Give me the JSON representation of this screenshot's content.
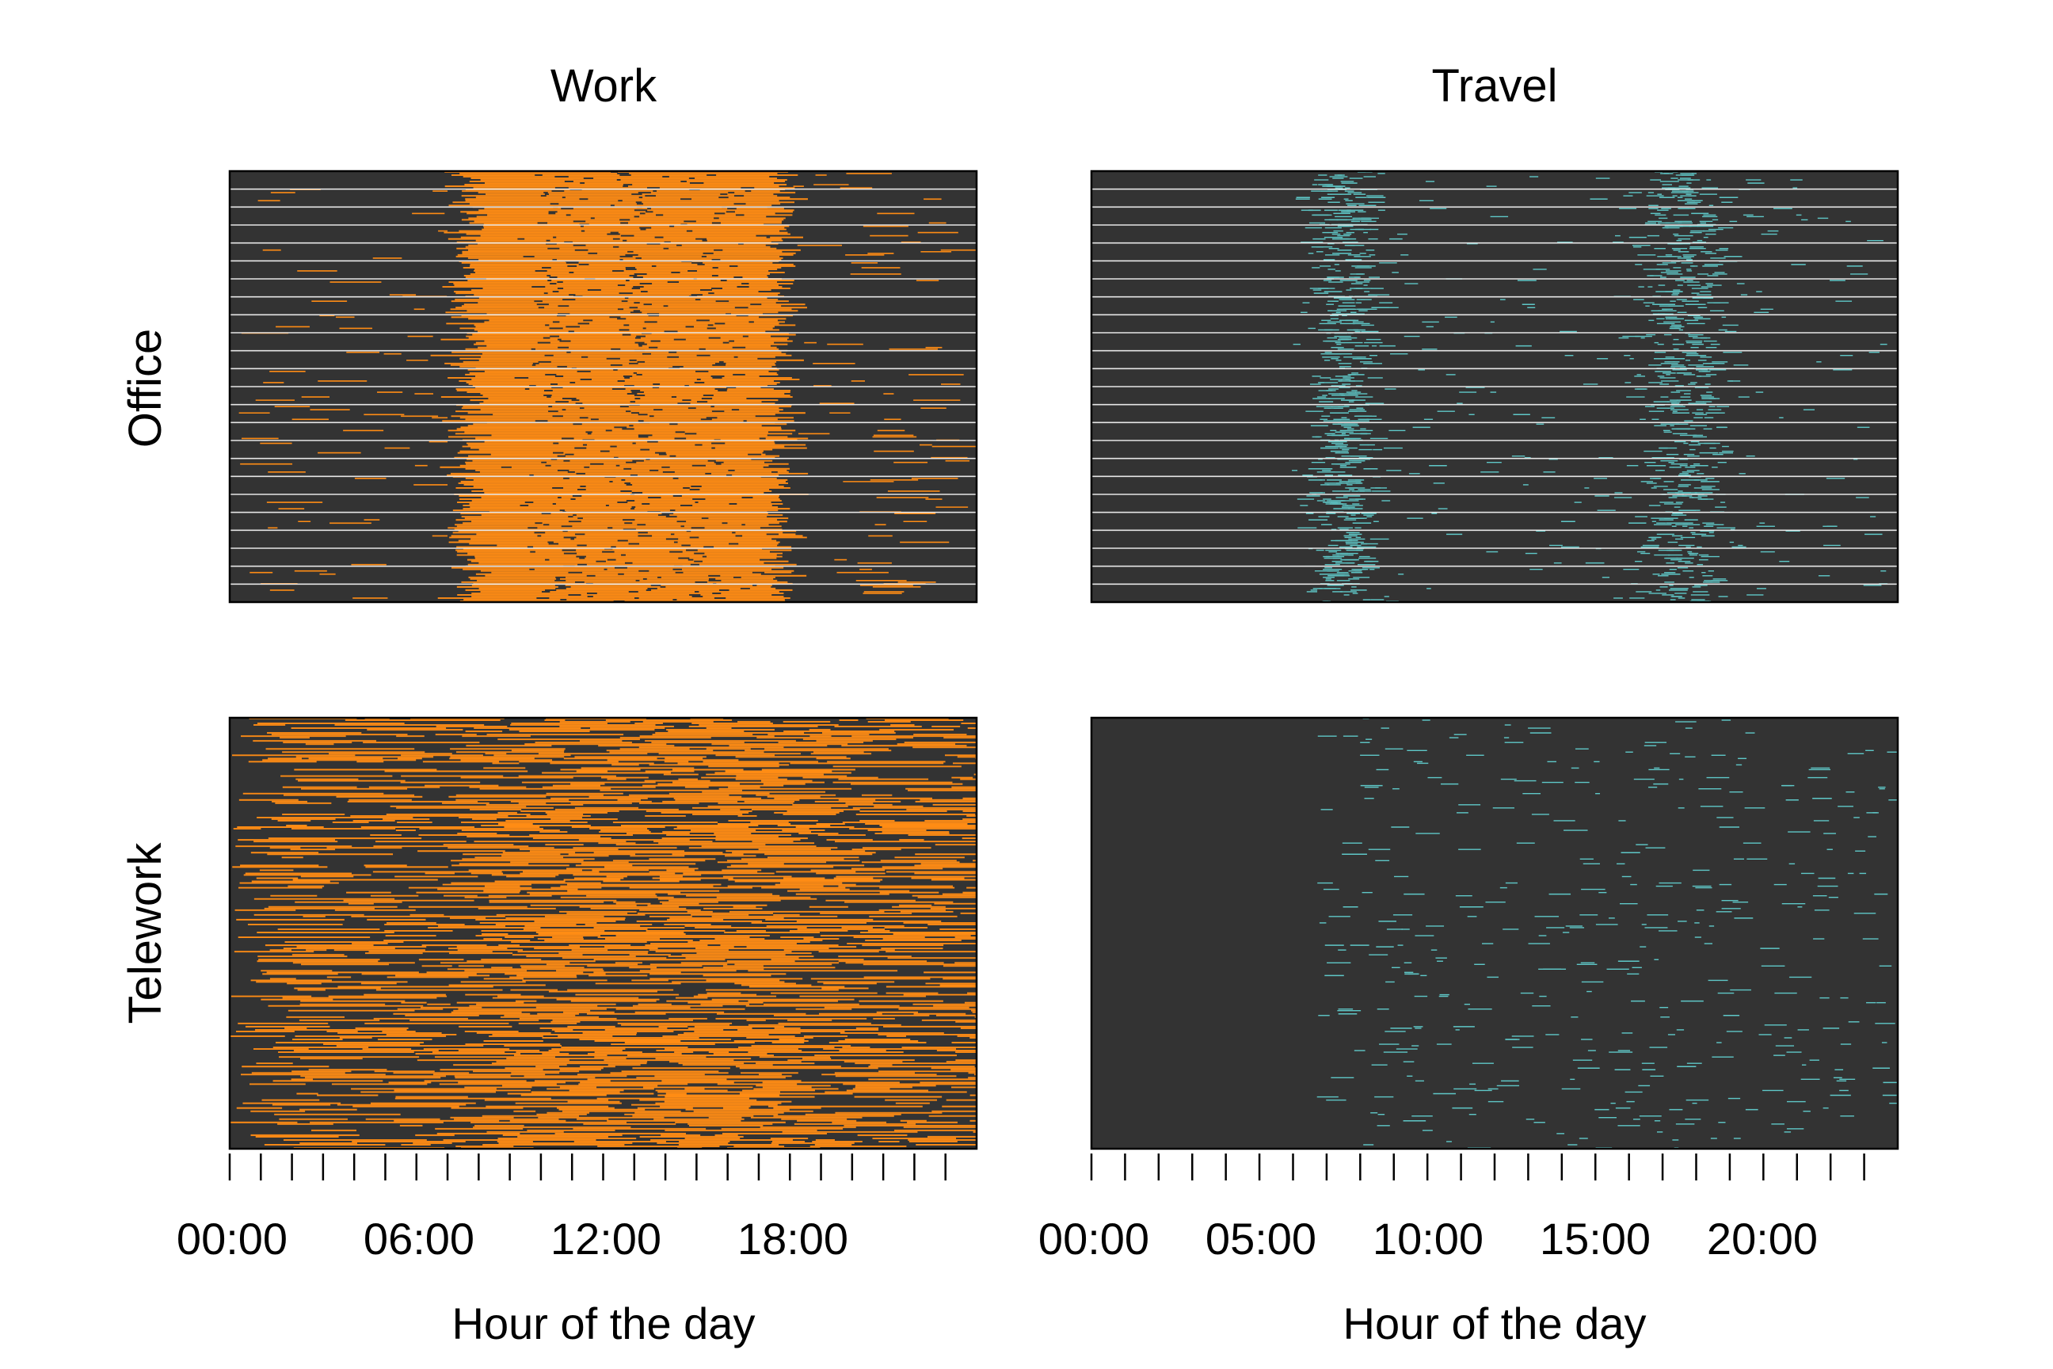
{
  "chart_data": {
    "type": "heatmap",
    "description_of_layout": "",
    "column_titles": [
      "Work",
      "Travel"
    ],
    "row_labels": [
      "Office",
      "Telework"
    ],
    "colors": {
      "background": "#333333",
      "work": "#ff8c14",
      "travel": "#5fc8c8",
      "separator": "#e6e6e6",
      "frame": "#000000"
    },
    "panels": [
      {
        "column": "Work",
        "row": "Office",
        "activity": "work",
        "x_unit": "hour",
        "xlim": [
          0,
          24
        ],
        "activity_hours_typical": [
          7.5,
          18
        ],
        "separator_rows": 23,
        "xaxis": {
          "ticks_every_hours": 1,
          "labels": [
            "00:00",
            "06:00",
            "12:00",
            "18:00"
          ],
          "label_hours": [
            0,
            6,
            12,
            18
          ],
          "xlabel": "Hour of the day"
        }
      },
      {
        "column": "Travel",
        "row": "Office",
        "activity": "travel",
        "x_unit": "hour",
        "xlim": [
          0,
          24
        ],
        "peaks_hours": [
          7.5,
          17.5
        ],
        "separator_rows": 23,
        "xaxis": {
          "ticks_every_hours": 1,
          "labels": [
            "00:00",
            "05:00",
            "10:00",
            "15:00",
            "20:00"
          ],
          "label_hours": [
            0,
            5,
            10,
            15,
            20
          ],
          "xlabel": "Hour of the day"
        }
      },
      {
        "column": "Work",
        "row": "Telework",
        "activity": "work",
        "x_unit": "hour",
        "xlim": [
          0,
          24
        ],
        "activity_hours_typical": [
          0,
          24
        ]
      },
      {
        "column": "Travel",
        "row": "Telework",
        "activity": "travel",
        "x_unit": "hour",
        "xlim": [
          0,
          24
        ],
        "activity_hours_typical": [
          6.5,
          24
        ]
      }
    ],
    "xlabel": "Hour of the day"
  }
}
